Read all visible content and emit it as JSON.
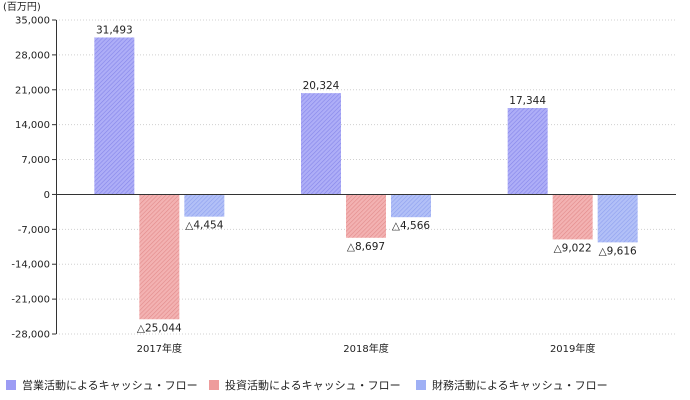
{
  "chart_data": {
    "type": "bar",
    "unit_label": "(百万円)",
    "categories": [
      "2017年度",
      "2018年度",
      "2019年度"
    ],
    "ylim": [
      -28000,
      35000
    ],
    "yticks": [
      35000,
      28000,
      21000,
      14000,
      7000,
      0,
      -7000,
      -14000,
      -21000,
      -28000
    ],
    "ytick_labels": [
      "35,000",
      "28,000",
      "21,000",
      "14,000",
      "7,000",
      "0",
      "-7,000",
      "-14,000",
      "-21,000",
      "-28,000"
    ],
    "grid": true,
    "legend_position": "bottom",
    "series": [
      {
        "name": "営業活動によるキャッシュ・フロー",
        "color": "#9c9cf4",
        "values": [
          31493,
          20324,
          17344
        ],
        "labels": [
          "31,493",
          "20,324",
          "17,344"
        ]
      },
      {
        "name": "投資活動によるキャッシュ・フロー",
        "color": "#ee9c9c",
        "values": [
          -25044,
          -8697,
          -9022
        ],
        "labels": [
          "△25,044",
          "△8,697",
          "△9,022"
        ]
      },
      {
        "name": "財務活動によるキャッシュ・フロー",
        "color": "#9fb0f5",
        "values": [
          -4454,
          -4566,
          -9616
        ],
        "labels": [
          "△4,454",
          "△4,566",
          "△9,616"
        ]
      }
    ]
  }
}
